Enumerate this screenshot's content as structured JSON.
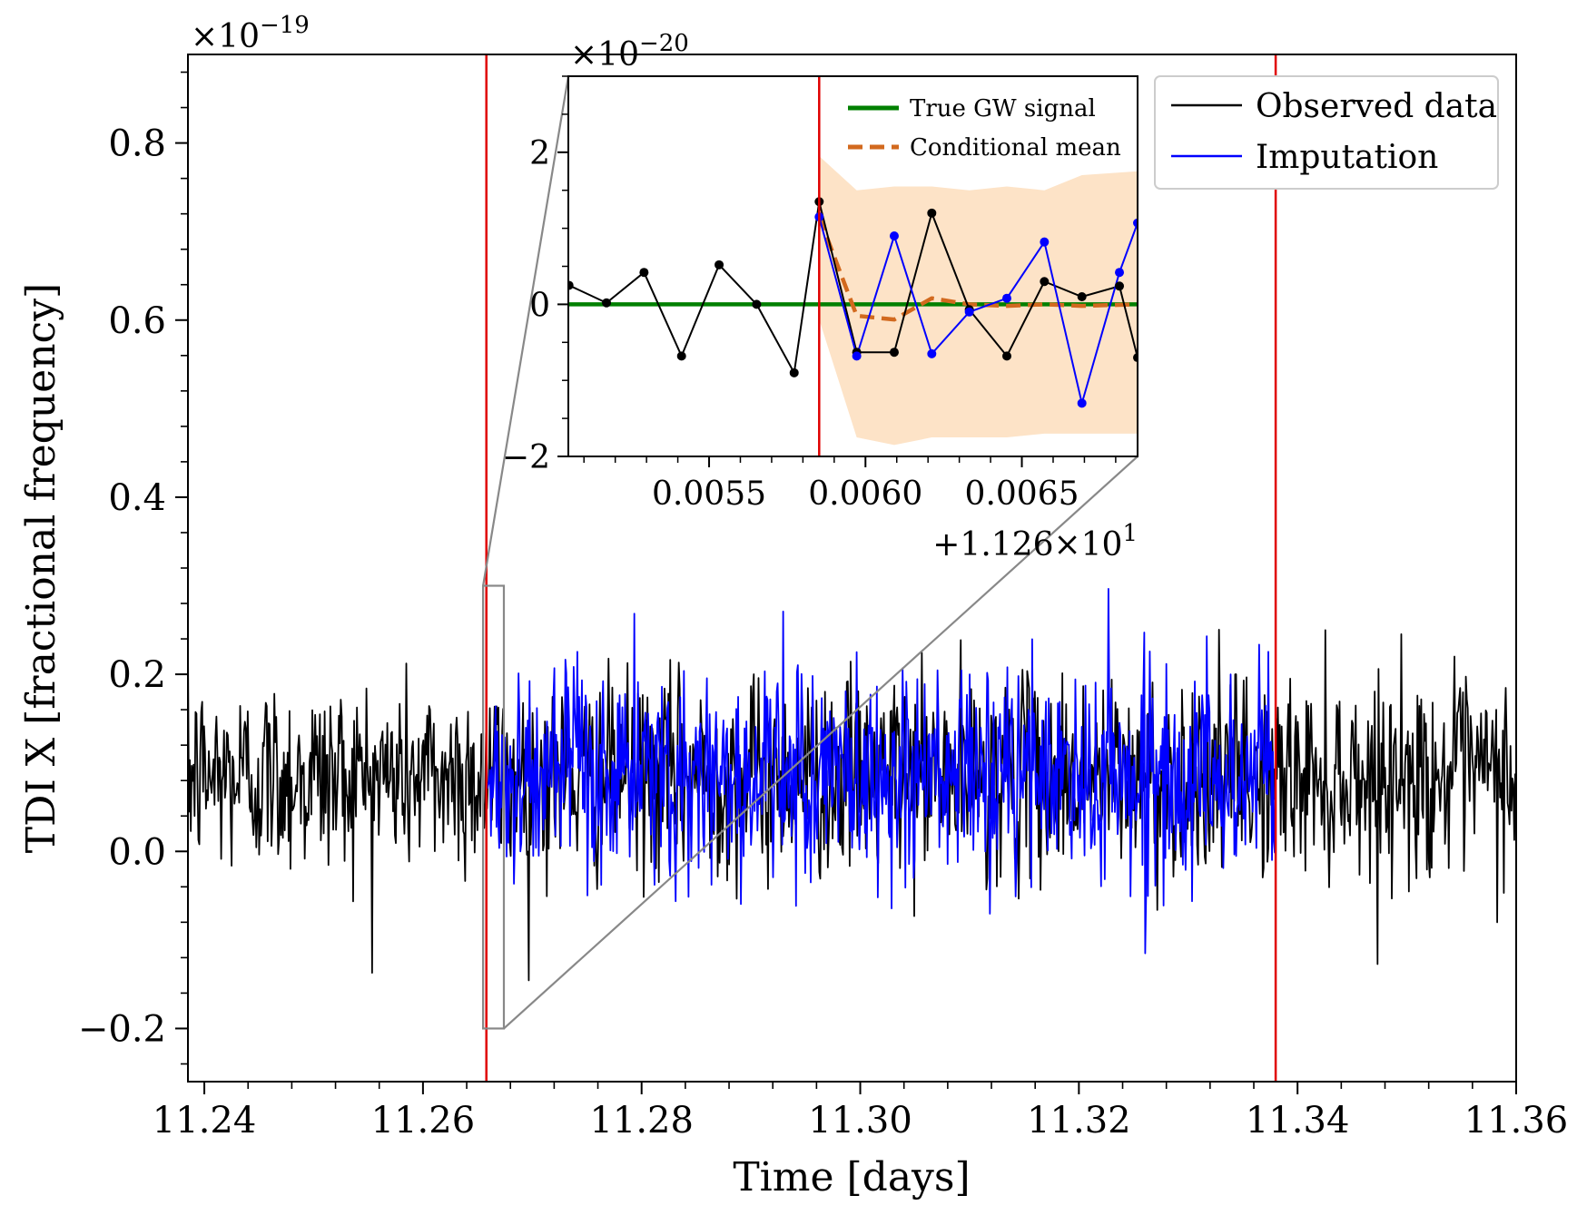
{
  "chart_data": [
    {
      "type": "line",
      "panel": "main",
      "xlabel": "Time [days]",
      "ylabel": "TDI X [fractional frequency]",
      "y_scale_label": "×10",
      "y_scale_exponent": "−19",
      "xlim": [
        11.2385,
        11.36
      ],
      "ylim": [
        -0.26,
        0.9
      ],
      "x_ticks": [
        11.24,
        11.26,
        11.28,
        11.3,
        11.32,
        11.34,
        11.36
      ],
      "x_tick_labels": [
        "11.24",
        "11.26",
        "11.28",
        "11.30",
        "11.32",
        "11.34",
        "11.36"
      ],
      "y_ticks": [
        -0.2,
        0.0,
        0.2,
        0.4,
        0.6,
        0.8
      ],
      "y_tick_labels": [
        "−0.2",
        "0.0",
        "0.2",
        "0.4",
        "0.6",
        "0.8"
      ],
      "gap_markers": [
        11.2658,
        11.338
      ],
      "zoom_box": {
        "x": [
          11.2655,
          11.2674
        ],
        "y": [
          -0.2,
          0.3
        ]
      },
      "series": [
        {
          "name": "Observed data",
          "color": "#000000",
          "x_range": [
            11.2385,
            11.36
          ],
          "center": 0.085,
          "noise_std": 0.055,
          "n_points": 1400
        },
        {
          "name": "Imputation",
          "color": "#0000ff",
          "x_range": [
            11.2658,
            11.338
          ],
          "center": 0.085,
          "noise_std": 0.06,
          "n_points": 860
        }
      ],
      "legend": [
        {
          "label": "Observed data",
          "color": "#000000"
        },
        {
          "label": "Imputation",
          "color": "#0000ff"
        }
      ],
      "legend_position": "top-right"
    },
    {
      "type": "line",
      "panel": "inset",
      "y_scale_label": "×10",
      "y_scale_exponent": "−20",
      "x_offset_label": "+1.126×10",
      "x_offset_exponent": "1",
      "xlim": [
        0.00505,
        0.00687
      ],
      "ylim": [
        -2.0,
        3.0
      ],
      "x_ticks": [
        0.0055,
        0.006,
        0.0065
      ],
      "x_tick_labels": [
        "0.0055",
        "0.0060",
        "0.0065"
      ],
      "y_ticks": [
        -2,
        0,
        2
      ],
      "y_tick_labels": [
        "−2",
        "0",
        "2"
      ],
      "gap_start": 0.005852,
      "confidence_band": {
        "color": "#fde3c7",
        "x": [
          0.005852,
          0.005972,
          0.006092,
          0.006212,
          0.006332,
          0.006452,
          0.006572,
          0.006692,
          0.00687
        ],
        "upper": [
          1.95,
          1.5,
          1.55,
          1.55,
          1.5,
          1.55,
          1.5,
          1.7,
          1.75
        ],
        "lower": [
          -0.2,
          -1.75,
          -1.85,
          -1.75,
          -1.75,
          -1.75,
          -1.7,
          -1.7,
          -1.7
        ]
      },
      "series": [
        {
          "name": "True GW signal",
          "color": "#008000",
          "style": "solid",
          "x": [
            0.00505,
            0.00687
          ],
          "y": [
            0.0,
            0.0
          ]
        },
        {
          "name": "Conditional mean",
          "color": "#d2691e",
          "style": "dashed",
          "x": [
            0.005852,
            0.005972,
            0.006092,
            0.006212,
            0.006332,
            0.006452,
            0.006572,
            0.006692,
            0.00687
          ],
          "y": [
            1.15,
            -0.15,
            -0.2,
            0.08,
            0.0,
            -0.02,
            0.0,
            -0.02,
            0.0
          ]
        },
        {
          "name": "Observed data",
          "color": "#000000",
          "style": "solid-markers",
          "x": [
            0.005052,
            0.005172,
            0.005292,
            0.005412,
            0.005532,
            0.005652,
            0.005772,
            0.005852,
            0.005972,
            0.006092,
            0.006212,
            0.006332,
            0.006452,
            0.006572,
            0.006692,
            0.006812,
            0.00687
          ],
          "y": [
            0.25,
            0.02,
            0.42,
            -0.68,
            0.52,
            0.0,
            -0.9,
            1.35,
            -0.63,
            -0.63,
            1.2,
            -0.07,
            -0.68,
            0.3,
            0.1,
            0.24,
            -0.7
          ]
        },
        {
          "name": "Imputation",
          "color": "#0000ff",
          "style": "solid-markers",
          "x": [
            0.005852,
            0.005972,
            0.006092,
            0.006212,
            0.006332,
            0.006452,
            0.006572,
            0.006692,
            0.006812,
            0.00687
          ],
          "y": [
            1.15,
            -0.68,
            0.9,
            -0.65,
            -0.1,
            0.08,
            0.82,
            -1.3,
            0.42,
            1.07
          ]
        }
      ],
      "legend": [
        {
          "label": "True GW signal",
          "color": "#008000",
          "style": "solid"
        },
        {
          "label": "Conditional mean",
          "color": "#d2691e",
          "style": "dashed"
        }
      ],
      "legend_position": "top-right"
    }
  ]
}
